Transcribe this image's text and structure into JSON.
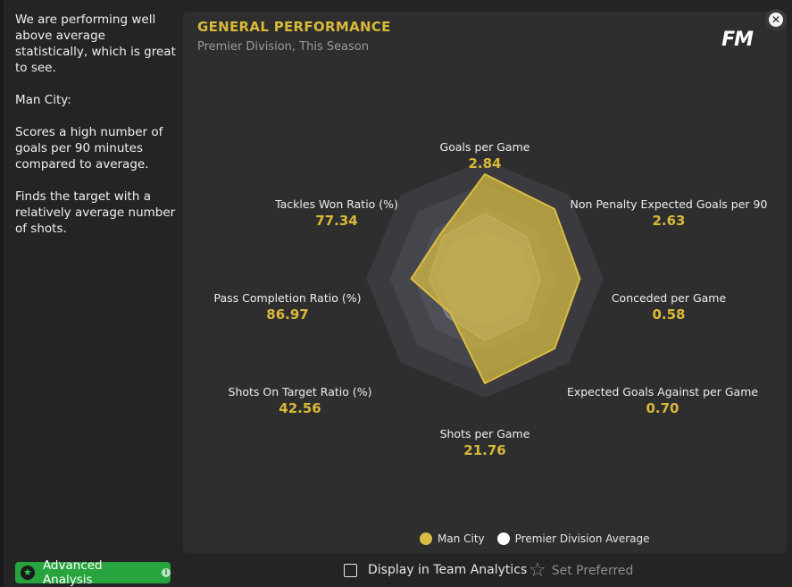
{
  "sidebar": {
    "paragraphs": [
      "We are performing well above average statistically, which is great to see.",
      "Man City:",
      "Scores a high number of goals per 90 minutes compared to average.",
      "Finds the target with a relatively average number of shots."
    ]
  },
  "panel": {
    "title": "GENERAL PERFORMANCE",
    "subtitle": "Premier Division, This Season",
    "logo": "FM",
    "close_icon": "close-icon"
  },
  "chart_data": {
    "type": "radar",
    "axes": [
      {
        "label": "Goals per Game",
        "value": "2.84"
      },
      {
        "label": "Non Penalty Expected Goals per 90",
        "value": "2.63"
      },
      {
        "label": "Conceded per Game",
        "value": "0.58"
      },
      {
        "label": "Expected Goals Against per Game",
        "value": "0.70"
      },
      {
        "label": "Shots per Game",
        "value": "21.76"
      },
      {
        "label": "Shots On Target Ratio (%)",
        "value": "42.56"
      },
      {
        "label": "Pass Completion Ratio (%)",
        "value": "86.97"
      },
      {
        "label": "Tackles Won Ratio (%)",
        "value": "77.34"
      }
    ],
    "series": [
      {
        "name": "Man City",
        "color": "#d9bd42",
        "levels": [
          0.88,
          0.83,
          0.8,
          0.83,
          0.88,
          0.41,
          0.62,
          0.53
        ]
      },
      {
        "name": "Premier Division Average",
        "color": "#ffffff",
        "levels": [
          0.55,
          0.5,
          0.47,
          0.5,
          0.52,
          0.45,
          0.47,
          0.5
        ]
      }
    ],
    "ring_colors": [
      "#3a3a3f",
      "#45454c",
      "#4f4f58",
      "#5c5c66"
    ]
  },
  "legend": {
    "items": [
      {
        "label": "Man City",
        "color": "#d9bd42"
      },
      {
        "label": "Premier Division Average",
        "color": "#ffffff"
      }
    ]
  },
  "footer": {
    "advanced_analysis": "Advanced Analysis",
    "display_in_team_analytics": "Display in Team Analytics",
    "set_preferred": "Set Preferred"
  }
}
